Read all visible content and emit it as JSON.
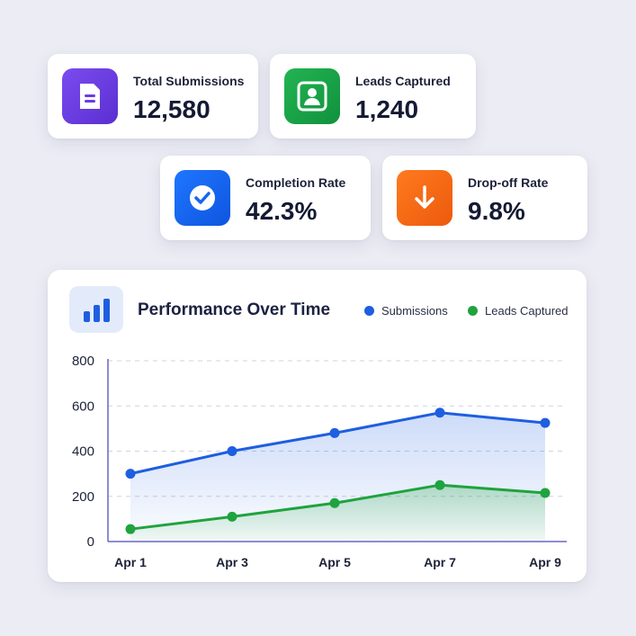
{
  "stats": [
    {
      "label": "Total Submissions",
      "value": "12,580",
      "icon": "document-icon",
      "color": "#6a3de0"
    },
    {
      "label": "Leads Captured",
      "value": "1,240",
      "icon": "user-icon",
      "color": "#16a34a"
    },
    {
      "label": "Completion Rate",
      "value": "42.3%",
      "icon": "check-circle-icon",
      "color": "#1764f0"
    },
    {
      "label": "Drop-off Rate",
      "value": "9.8%",
      "icon": "arrow-down-icon",
      "color": "#f26a16"
    }
  ],
  "chart": {
    "title": "Performance Over Time",
    "legend": [
      {
        "name": "Submissions",
        "color": "#1e5ee0"
      },
      {
        "name": "Leads Captured",
        "color": "#1fa33e"
      }
    ]
  },
  "chart_data": {
    "type": "line",
    "title": "Performance Over Time",
    "x": [
      "Apr 1",
      "Apr 3",
      "Apr 5",
      "Apr 7",
      "Apr 9"
    ],
    "ylim": [
      0,
      800
    ],
    "yticks": [
      "0",
      "200",
      "400",
      "600",
      "800"
    ],
    "grid": true,
    "legend_position": "top-right",
    "series": [
      {
        "name": "Submissions",
        "values": [
          300,
          400,
          480,
          570,
          525
        ],
        "color": "#1e5ee0"
      },
      {
        "name": "Leads Captured",
        "values": [
          55,
          110,
          170,
          250,
          215
        ],
        "color": "#1fa33e"
      }
    ]
  }
}
